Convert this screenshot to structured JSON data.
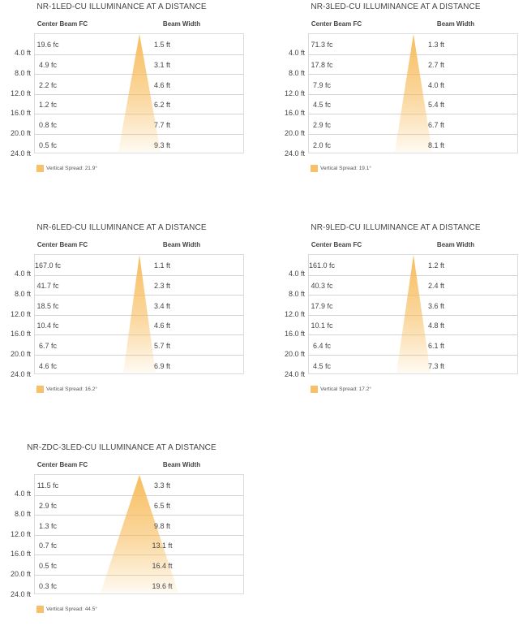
{
  "colors": {
    "beam": "#f7b955",
    "grid": "#d4d4d4",
    "swatch": "#f7c16c"
  },
  "chart_data": [
    {
      "type": "table",
      "title": "NR-1LED-CU ILLUMINANCE AT A DISTANCE",
      "col_headers": [
        "Center Beam FC",
        "Beam Width"
      ],
      "distances": [
        "4.0 ft",
        "8.0 ft",
        "12.0 ft",
        "16.0 ft",
        "20.0 ft",
        "24.0 ft"
      ],
      "center_beam_fc": [
        "19.6 fc",
        "4.9 fc",
        "2.2 fc",
        "1.2 fc",
        "0.8 fc",
        "0.5 fc"
      ],
      "beam_width": [
        "1.5 ft",
        "3.1 ft",
        "4.6 ft",
        "6.2 ft",
        "7.7 ft",
        "9.3 ft"
      ],
      "legend": "Vertical Spread: 21.9°",
      "vertical_spread_deg": 21.9
    },
    {
      "type": "table",
      "title": "NR-3LED-CU ILLUMINANCE AT A DISTANCE",
      "col_headers": [
        "Center Beam FC",
        "Beam Width"
      ],
      "distances": [
        "4.0 ft",
        "8.0 ft",
        "12.0 ft",
        "16.0 ft",
        "20.0 ft",
        "24.0 ft"
      ],
      "center_beam_fc": [
        "71.3 fc",
        "17.8 fc",
        "7.9 fc",
        "4.5 fc",
        "2.9 fc",
        "2.0 fc"
      ],
      "beam_width": [
        "1.3 ft",
        "2.7 ft",
        "4.0 ft",
        "5.4 ft",
        "6.7 ft",
        "8.1 ft"
      ],
      "legend": "Vertical Spread: 19.1°",
      "vertical_spread_deg": 19.1
    },
    {
      "type": "table",
      "title": "NR-6LED-CU ILLUMINANCE AT A DISTANCE",
      "col_headers": [
        "Center Beam FC",
        "Beam Width"
      ],
      "distances": [
        "4.0 ft",
        "8.0 ft",
        "12.0 ft",
        "16.0 ft",
        "20.0 ft",
        "24.0 ft"
      ],
      "center_beam_fc": [
        "167.0 fc",
        "41.7 fc",
        "18.5 fc",
        "10.4 fc",
        "6.7 fc",
        "4.6 fc"
      ],
      "beam_width": [
        "1.1 ft",
        "2.3 ft",
        "3.4 ft",
        "4.6 ft",
        "5.7 ft",
        "6.9 ft"
      ],
      "legend": "Vertical Spread: 16.2°",
      "vertical_spread_deg": 16.2
    },
    {
      "type": "table",
      "title": "NR-9LED-CU ILLUMINANCE AT A DISTANCE",
      "col_headers": [
        "Center Beam FC",
        "Beam Width"
      ],
      "distances": [
        "4.0 ft",
        "8.0 ft",
        "12.0 ft",
        "16.0 ft",
        "20.0 ft",
        "24.0 ft"
      ],
      "center_beam_fc": [
        "161.0 fc",
        "40.3 fc",
        "17.9 fc",
        "10.1 fc",
        "6.4 fc",
        "4.5 fc"
      ],
      "beam_width": [
        "1.2 ft",
        "2.4 ft",
        "3.6 ft",
        "4.8 ft",
        "6.1 ft",
        "7.3 ft"
      ],
      "legend": "Vertical Spread: 17.2°",
      "vertical_spread_deg": 17.2
    },
    {
      "type": "table",
      "title": "NR-ZDC-3LED-CU ILLUMINANCE AT A DISTANCE",
      "col_headers": [
        "Center Beam FC",
        "Beam Width"
      ],
      "distances": [
        "4.0 ft",
        "8.0 ft",
        "12.0 ft",
        "16.0 ft",
        "20.0 ft",
        "24.0 ft"
      ],
      "center_beam_fc": [
        "11.5 fc",
        "2.9 fc",
        "1.3 fc",
        "0.7 fc",
        "0.5 fc",
        "0.3 fc"
      ],
      "beam_width": [
        "3.3 ft",
        "6.5 ft",
        "9.8 ft",
        "13.1 ft",
        "16.4 ft",
        "19.6 ft"
      ],
      "legend": "Vertical Spread: 44.5°",
      "vertical_spread_deg": 44.5
    }
  ]
}
